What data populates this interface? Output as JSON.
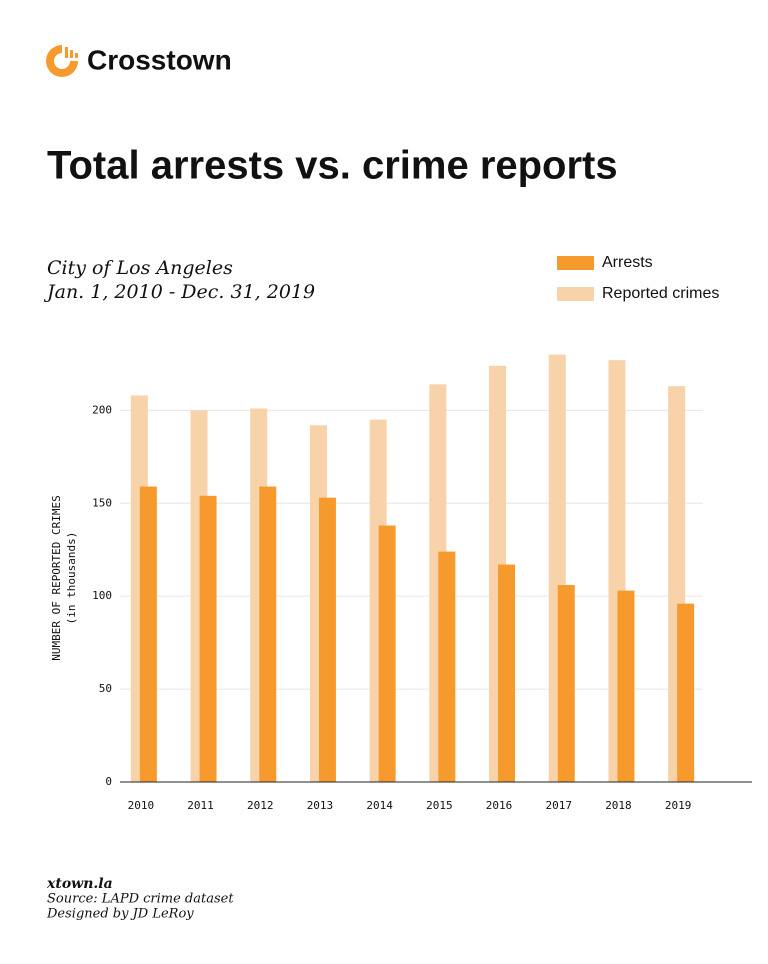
{
  "header": {
    "brand": "Crosstown"
  },
  "chart_data": {
    "type": "bar",
    "title": "Total arrests vs. crime reports",
    "subtitle": [
      "City of Los Angeles",
      "Jan. 1, 2010 - Dec. 31, 2019"
    ],
    "y_label": [
      "NUMBER OF REPORTED CRIMES",
      "(in thousands)"
    ],
    "categories": [
      "2010",
      "2011",
      "2012",
      "2013",
      "2014",
      "2015",
      "2016",
      "2017",
      "2018",
      "2019"
    ],
    "series": [
      {
        "name": "Reported crimes",
        "color": "#f8d3aa",
        "values": [
          208,
          200,
          201,
          192,
          195,
          214,
          224,
          230,
          227,
          213
        ]
      },
      {
        "name": "Arrests",
        "color": "#f79a2e",
        "values": [
          159,
          154,
          159,
          153,
          138,
          124,
          117,
          106,
          103,
          96
        ]
      }
    ],
    "ylim": [
      0,
      240
    ],
    "yticks": [
      0,
      50,
      100,
      150,
      200
    ],
    "grid": true,
    "legend": "top-right"
  },
  "footer": {
    "site": "xtown.la",
    "source": "Source: LAPD crime dataset",
    "credit": "Designed by JD LeRoy"
  }
}
